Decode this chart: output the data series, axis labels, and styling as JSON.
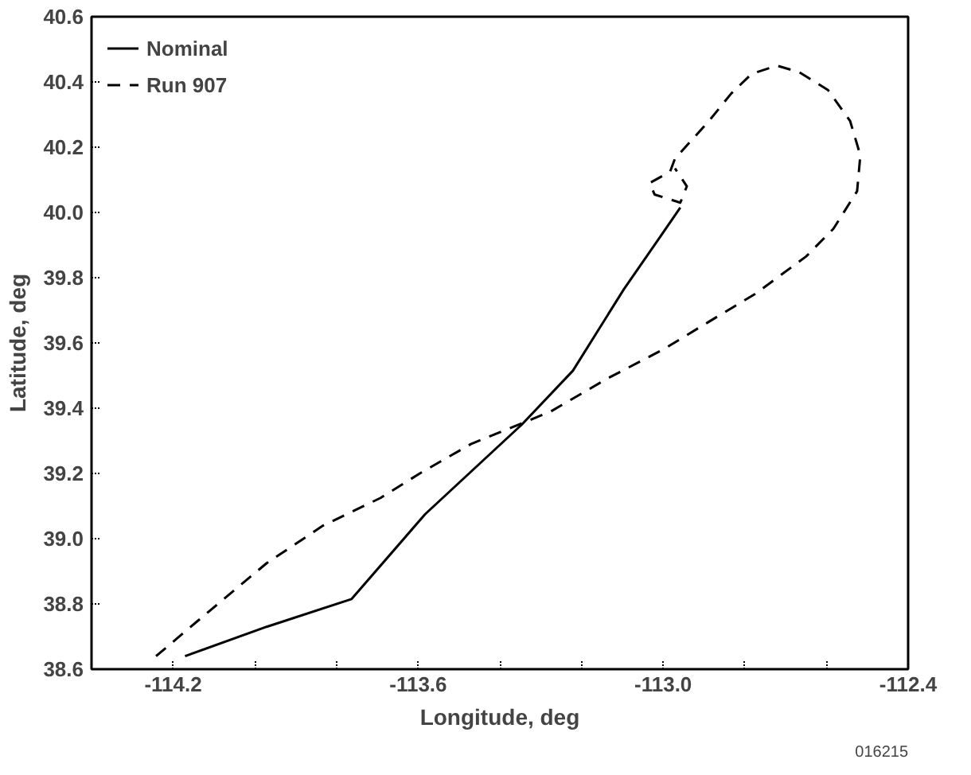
{
  "chart_data": {
    "type": "line",
    "xlabel": "Longitude, deg",
    "ylabel": "Latitude, deg",
    "xlim": [
      -114.4,
      -112.4
    ],
    "ylim": [
      38.6,
      40.6
    ],
    "xticks": [
      -114.2,
      {
        "value": -114.0,
        "label": null
      },
      {
        "value": -113.8,
        "label": null
      },
      -113.6,
      {
        "value": -113.4,
        "label": null
      },
      {
        "value": -113.2,
        "label": null
      },
      {
        "value": -113.0,
        "label": "-113.0"
      },
      {
        "value": -112.8,
        "label": null
      },
      {
        "value": -112.6,
        "label": null
      },
      -112.4
    ],
    "yticks": [
      38.6,
      38.8,
      {
        "value": 39.0,
        "label": "39.0"
      },
      39.2,
      39.4,
      39.6,
      39.8,
      {
        "value": 40.0,
        "label": "40.0"
      },
      40.2,
      40.4,
      40.6
    ],
    "grid": false,
    "legend": "top left",
    "series": [
      {
        "name": "Nominal",
        "color": "#000000",
        "line_style": "solid",
        "x": [
          -114.171,
          -113.971,
          -113.763,
          -113.583,
          -113.346,
          -113.221,
          -113.096,
          -113.013,
          -112.958
        ],
        "values": [
          38.64,
          38.73,
          38.815,
          39.075,
          39.35,
          39.515,
          39.765,
          39.915,
          40.015
        ]
      },
      {
        "name": "Run 907",
        "color": "#000000",
        "line_style": "dashed",
        "x": [
          -114.242,
          -114.138,
          -113.971,
          -113.833,
          -113.692,
          -113.596,
          -113.471,
          -113.275,
          -113.138,
          -113.0,
          -112.888,
          -112.775,
          -112.65,
          -112.583,
          -112.525,
          -112.517,
          -112.542,
          -112.596,
          -112.667,
          -112.721,
          -112.783,
          -112.833,
          -112.888,
          -112.971,
          -112.983,
          -113.033,
          -113.021,
          -112.958,
          -112.942,
          -112.971
        ],
        "values": [
          38.64,
          38.75,
          38.925,
          39.04,
          39.125,
          39.2,
          39.29,
          39.39,
          39.49,
          39.58,
          39.665,
          39.75,
          39.865,
          39.95,
          40.065,
          40.175,
          40.28,
          40.375,
          40.43,
          40.45,
          40.425,
          40.365,
          40.28,
          40.165,
          40.125,
          40.09,
          40.055,
          40.03,
          40.08,
          40.135
        ]
      }
    ],
    "annotations": [
      "016215"
    ]
  }
}
